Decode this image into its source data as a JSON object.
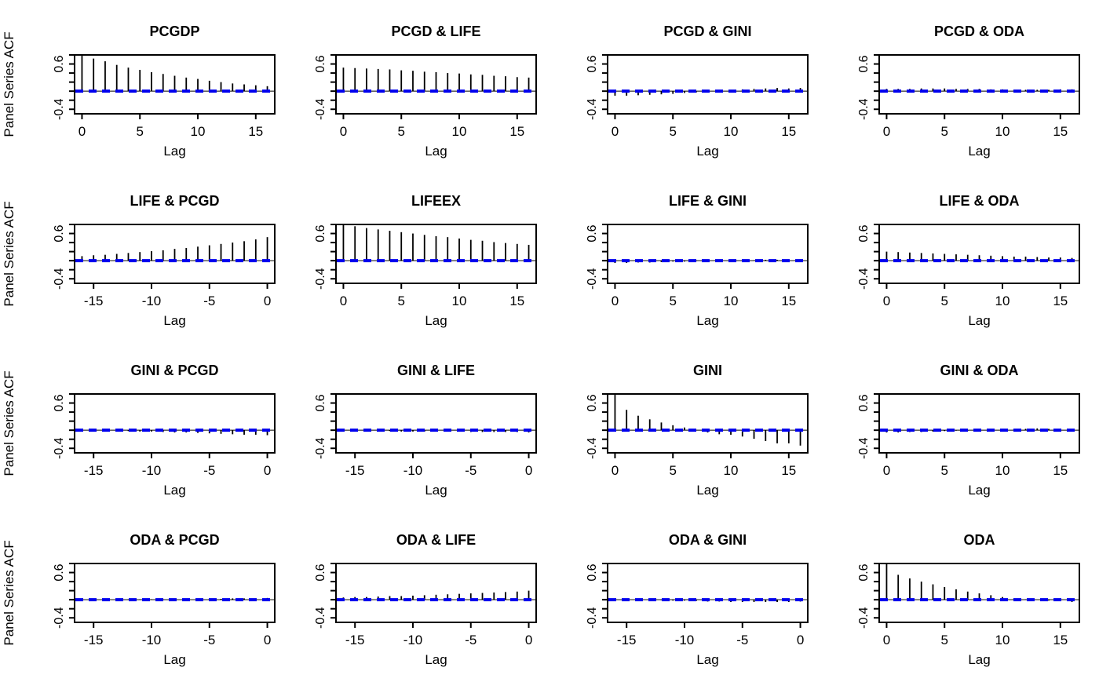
{
  "figure": {
    "ylab": "Panel Series ACF",
    "xlab": "Lag",
    "ci_color": "#0000ee",
    "spike_color": "#000000",
    "axis_color": "#000000",
    "ylim": [
      -0.5,
      0.8
    ],
    "yticks": [
      -0.4,
      -0.2,
      0.0,
      0.2,
      0.4,
      0.6,
      0.8
    ],
    "ytick_labels": [
      {
        "value": 0.6,
        "label": "0.6"
      },
      {
        "value": -0.4,
        "label": "-0.4"
      }
    ],
    "x_pad": 0.64,
    "grid": {
      "rows": 4,
      "cols": 4
    }
  },
  "chart_data": [
    {
      "type": "bar",
      "title": "PCGDP",
      "xlabel": "Lag",
      "ylabel": "Panel Series ACF",
      "row": 1,
      "col": 1,
      "has_ylab": true,
      "lag_min": 0,
      "lag_max": 16,
      "xticks": [
        0,
        5,
        10,
        15
      ],
      "xtick_labels": [
        "0",
        "5",
        "10",
        "15"
      ],
      "values": [
        1.0,
        0.72,
        0.66,
        0.58,
        0.52,
        0.47,
        0.42,
        0.38,
        0.34,
        0.3,
        0.27,
        0.23,
        0.2,
        0.17,
        0.15,
        0.13,
        0.11
      ],
      "ci_line_y": 0.0
    },
    {
      "type": "bar",
      "title": "PCGD & LIFE",
      "xlabel": "Lag",
      "ylabel": "",
      "row": 1,
      "col": 2,
      "has_ylab": false,
      "lag_min": 0,
      "lag_max": 16,
      "xticks": [
        0,
        5,
        10,
        15
      ],
      "xtick_labels": [
        "0",
        "5",
        "10",
        "15"
      ],
      "values": [
        0.52,
        0.51,
        0.5,
        0.49,
        0.48,
        0.46,
        0.45,
        0.43,
        0.42,
        0.4,
        0.39,
        0.37,
        0.36,
        0.34,
        0.33,
        0.31,
        0.3
      ],
      "ci_line_y": 0.0
    },
    {
      "type": "bar",
      "title": "PCGD & GINI",
      "xlabel": "Lag",
      "ylabel": "",
      "row": 1,
      "col": 3,
      "has_ylab": false,
      "lag_min": 0,
      "lag_max": 16,
      "xticks": [
        0,
        5,
        10,
        15
      ],
      "xtick_labels": [
        "0",
        "5",
        "10",
        "15"
      ],
      "values": [
        -0.1,
        -0.1,
        -0.09,
        -0.08,
        -0.07,
        -0.06,
        -0.04,
        -0.03,
        -0.02,
        0.0,
        0.02,
        0.04,
        0.05,
        0.06,
        0.07,
        0.06,
        0.07
      ],
      "ci_line_y": 0.0
    },
    {
      "type": "bar",
      "title": "PCGD & ODA",
      "xlabel": "Lag",
      "ylabel": "",
      "row": 1,
      "col": 4,
      "has_ylab": false,
      "lag_min": 0,
      "lag_max": 16,
      "xticks": [
        0,
        5,
        10,
        15
      ],
      "xtick_labels": [
        "0",
        "5",
        "10",
        "15"
      ],
      "values": [
        0.05,
        0.05,
        0.05,
        0.06,
        0.06,
        0.06,
        0.05,
        0.05,
        0.05,
        0.04,
        0.04,
        0.03,
        0.03,
        0.03,
        0.03,
        0.04,
        0.04
      ],
      "ci_line_y": 0.0
    },
    {
      "type": "bar",
      "title": "LIFE & PCGD",
      "xlabel": "Lag",
      "ylabel": "Panel Series ACF",
      "row": 2,
      "col": 1,
      "has_ylab": true,
      "lag_min": -16,
      "lag_max": 0,
      "xticks": [
        -15,
        -10,
        -5,
        0
      ],
      "xtick_labels": [
        "-15",
        "-10",
        "-5",
        "0"
      ],
      "values": [
        0.1,
        0.12,
        0.13,
        0.15,
        0.17,
        0.19,
        0.21,
        0.23,
        0.26,
        0.28,
        0.31,
        0.34,
        0.37,
        0.4,
        0.43,
        0.47,
        0.52
      ],
      "ci_line_y": 0.0
    },
    {
      "type": "bar",
      "title": "LIFEEX",
      "xlabel": "Lag",
      "ylabel": "",
      "row": 2,
      "col": 2,
      "has_ylab": false,
      "lag_min": 0,
      "lag_max": 16,
      "xticks": [
        0,
        5,
        10,
        15
      ],
      "xtick_labels": [
        "0",
        "5",
        "10",
        "15"
      ],
      "values": [
        1.0,
        0.76,
        0.72,
        0.69,
        0.66,
        0.63,
        0.6,
        0.57,
        0.54,
        0.52,
        0.49,
        0.46,
        0.44,
        0.41,
        0.39,
        0.37,
        0.35
      ],
      "ci_line_y": 0.0
    },
    {
      "type": "bar",
      "title": "LIFE & GINI",
      "xlabel": "Lag",
      "ylabel": "",
      "row": 2,
      "col": 3,
      "has_ylab": false,
      "lag_min": 0,
      "lag_max": 16,
      "xticks": [
        0,
        5,
        10,
        15
      ],
      "xtick_labels": [
        "0",
        "5",
        "10",
        "15"
      ],
      "values": [
        -0.05,
        -0.05,
        -0.04,
        -0.04,
        -0.03,
        -0.02,
        -0.02,
        -0.01,
        -0.01,
        0.0,
        0.0,
        0.01,
        0.01,
        0.02,
        0.02,
        0.03,
        0.03
      ],
      "ci_line_y": 0.0
    },
    {
      "type": "bar",
      "title": "LIFE & ODA",
      "xlabel": "Lag",
      "ylabel": "",
      "row": 2,
      "col": 4,
      "has_ylab": false,
      "lag_min": 0,
      "lag_max": 16,
      "xticks": [
        0,
        5,
        10,
        15
      ],
      "xtick_labels": [
        "0",
        "5",
        "10",
        "15"
      ],
      "values": [
        0.2,
        0.19,
        0.18,
        0.17,
        0.16,
        0.15,
        0.14,
        0.13,
        0.12,
        0.11,
        0.1,
        0.09,
        0.09,
        0.08,
        0.07,
        0.07,
        0.06
      ],
      "ci_line_y": 0.0
    },
    {
      "type": "bar",
      "title": "GINI & PCGD",
      "xlabel": "Lag",
      "ylabel": "Panel Series ACF",
      "row": 3,
      "col": 1,
      "has_ylab": true,
      "lag_min": -16,
      "lag_max": 0,
      "xticks": [
        -15,
        -10,
        -5,
        0
      ],
      "xtick_labels": [
        "-15",
        "-10",
        "-5",
        "0"
      ],
      "values": [
        0.0,
        -0.01,
        -0.01,
        -0.02,
        -0.02,
        -0.03,
        -0.03,
        -0.04,
        -0.05,
        -0.05,
        -0.06,
        -0.07,
        -0.08,
        -0.09,
        -0.1,
        -0.1,
        -0.11
      ],
      "ci_line_y": 0.0
    },
    {
      "type": "bar",
      "title": "GINI & LIFE",
      "xlabel": "Lag",
      "ylabel": "",
      "row": 3,
      "col": 2,
      "has_ylab": false,
      "lag_min": -16,
      "lag_max": 0,
      "xticks": [
        -15,
        -10,
        -5,
        0
      ],
      "xtick_labels": [
        "-15",
        "-10",
        "-5",
        "0"
      ],
      "values": [
        -0.02,
        -0.02,
        -0.02,
        -0.02,
        -0.02,
        -0.03,
        -0.03,
        -0.03,
        -0.03,
        -0.03,
        -0.03,
        -0.04,
        -0.04,
        -0.04,
        -0.04,
        -0.04,
        -0.05
      ],
      "ci_line_y": 0.0
    },
    {
      "type": "bar",
      "title": "GINI",
      "xlabel": "Lag",
      "ylabel": "",
      "row": 3,
      "col": 3,
      "has_ylab": false,
      "lag_min": 0,
      "lag_max": 16,
      "xticks": [
        0,
        5,
        10,
        15
      ],
      "xtick_labels": [
        "0",
        "5",
        "10",
        "15"
      ],
      "values": [
        1.0,
        0.45,
        0.32,
        0.24,
        0.17,
        0.11,
        0.06,
        0.0,
        -0.05,
        -0.09,
        -0.1,
        -0.14,
        -0.19,
        -0.24,
        -0.29,
        -0.29,
        -0.34
      ],
      "ci_line_y": 0.0
    },
    {
      "type": "bar",
      "title": "GINI & ODA",
      "xlabel": "Lag",
      "ylabel": "",
      "row": 3,
      "col": 4,
      "has_ylab": false,
      "lag_min": 0,
      "lag_max": 16,
      "xticks": [
        0,
        5,
        10,
        15
      ],
      "xtick_labels": [
        "0",
        "5",
        "10",
        "15"
      ],
      "values": [
        -0.05,
        -0.05,
        -0.04,
        -0.04,
        -0.03,
        -0.02,
        -0.01,
        -0.01,
        0.0,
        0.0,
        0.01,
        0.02,
        0.03,
        0.04,
        0.03,
        0.03,
        0.02
      ],
      "ci_line_y": 0.0
    },
    {
      "type": "bar",
      "title": "ODA & PCGD",
      "xlabel": "Lag",
      "ylabel": "Panel Series ACF",
      "row": 4,
      "col": 1,
      "has_ylab": true,
      "lag_min": -16,
      "lag_max": 0,
      "xticks": [
        -15,
        -10,
        -5,
        0
      ],
      "xtick_labels": [
        "-15",
        "-10",
        "-5",
        "0"
      ],
      "values": [
        0.0,
        0.0,
        0.0,
        0.0,
        0.01,
        0.01,
        0.01,
        0.01,
        0.01,
        0.02,
        0.02,
        0.02,
        0.02,
        0.03,
        0.03,
        0.03,
        0.04
      ],
      "ci_line_y": 0.0
    },
    {
      "type": "bar",
      "title": "ODA & LIFE",
      "xlabel": "Lag",
      "ylabel": "",
      "row": 4,
      "col": 2,
      "has_ylab": false,
      "lag_min": -16,
      "lag_max": 0,
      "xticks": [
        -15,
        -10,
        -5,
        0
      ],
      "xtick_labels": [
        "-15",
        "-10",
        "-5",
        "0"
      ],
      "values": [
        0.05,
        0.06,
        0.06,
        0.07,
        0.08,
        0.08,
        0.09,
        0.1,
        0.11,
        0.12,
        0.13,
        0.14,
        0.15,
        0.16,
        0.17,
        0.18,
        0.2
      ],
      "ci_line_y": 0.0
    },
    {
      "type": "bar",
      "title": "ODA & GINI",
      "xlabel": "Lag",
      "ylabel": "",
      "row": 4,
      "col": 3,
      "has_ylab": false,
      "lag_min": -16,
      "lag_max": 0,
      "xticks": [
        -15,
        -10,
        -5,
        0
      ],
      "xtick_labels": [
        "-15",
        "-10",
        "-5",
        "0"
      ],
      "values": [
        0.0,
        0.0,
        -0.01,
        -0.01,
        -0.01,
        -0.02,
        -0.02,
        -0.03,
        -0.04,
        -0.04,
        -0.05,
        -0.05,
        -0.05,
        -0.05,
        -0.05,
        -0.05,
        -0.04
      ],
      "ci_line_y": 0.0
    },
    {
      "type": "bar",
      "title": "ODA",
      "xlabel": "Lag",
      "ylabel": "",
      "row": 4,
      "col": 4,
      "has_ylab": false,
      "lag_min": 0,
      "lag_max": 16,
      "xticks": [
        0,
        5,
        10,
        15
      ],
      "xtick_labels": [
        "0",
        "5",
        "10",
        "15"
      ],
      "values": [
        1.0,
        0.55,
        0.47,
        0.4,
        0.34,
        0.28,
        0.23,
        0.18,
        0.14,
        0.1,
        0.06,
        0.03,
        0.01,
        0.0,
        -0.02,
        -0.03,
        -0.05
      ],
      "ci_line_y": 0.0
    }
  ]
}
